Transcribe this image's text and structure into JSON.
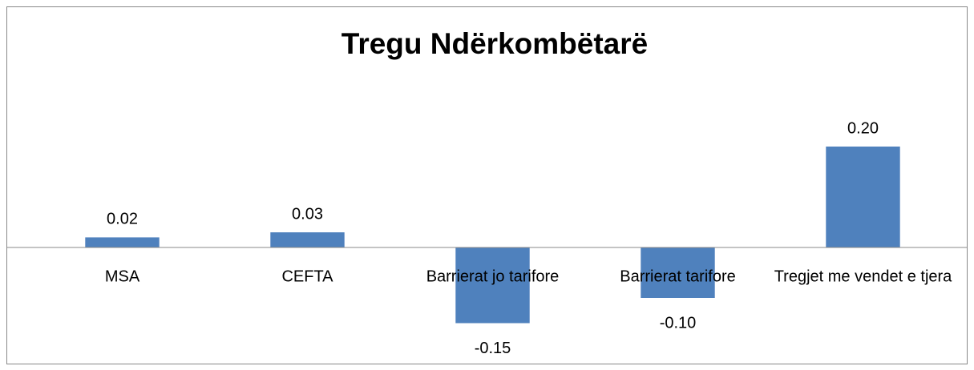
{
  "chart_data": {
    "type": "bar",
    "title": "Tregu Ndërkombëtarë",
    "categories": [
      "MSA",
      "CEFTA",
      "Barrierat jo tarifore",
      "Barrierat tarifore",
      "Tregjet me vendet e tjera"
    ],
    "values": [
      0.02,
      0.03,
      -0.15,
      -0.1,
      0.2
    ],
    "value_labels": [
      "0.02",
      "0.03",
      "-0.15",
      "-0.10",
      "0.20"
    ],
    "color": "#4f81bd",
    "ylim": [
      -0.2,
      0.3
    ]
  }
}
